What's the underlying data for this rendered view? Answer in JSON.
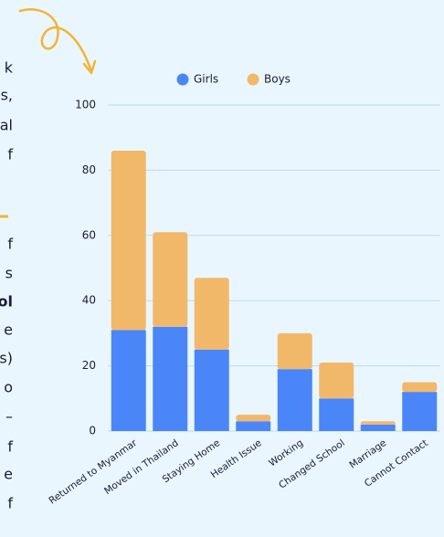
{
  "side_text": [
    "k",
    "s,",
    "al",
    "f",
    "f",
    "s",
    "ol",
    "e",
    "s)",
    "o",
    "–",
    "f",
    "e",
    "f"
  ],
  "chart_data": {
    "type": "stacked_bar",
    "categories": [
      "Returned to Myanmar",
      "Moved in Thailand",
      "Staying Home",
      "Health Issue",
      "Working",
      "Changed School",
      "Marriage",
      "Cannot Contact"
    ],
    "series": [
      {
        "name": "Girls",
        "color": "#4a86f7",
        "values": [
          31,
          32,
          25,
          3,
          19,
          10,
          2,
          12
        ]
      },
      {
        "name": "Boys",
        "color": "#f2b86a",
        "values": [
          55,
          29,
          22,
          2,
          11,
          11,
          1,
          3
        ]
      }
    ],
    "ylim": [
      0,
      100
    ],
    "yticks": [
      0,
      20,
      40,
      60,
      80,
      100
    ],
    "grid": true,
    "legend": "top"
  }
}
